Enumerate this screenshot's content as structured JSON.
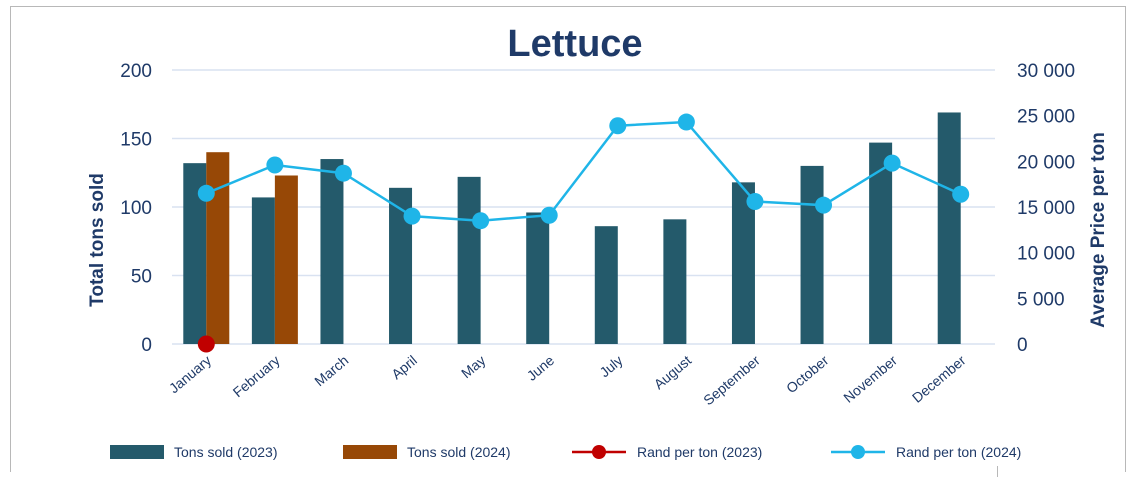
{
  "chart_data": {
    "type": "bar",
    "title": "Lettuce",
    "ylabel": "Total tons sold",
    "y2label": "Average Price per ton",
    "ylim": [
      0,
      200
    ],
    "y2lim": [
      0,
      30000
    ],
    "yticks": [
      "0",
      "50",
      "100",
      "150",
      "200"
    ],
    "y2ticks": [
      "0",
      "5 000",
      "10 000",
      "15 000",
      "20 000",
      "25 000",
      "30 000"
    ],
    "grid": true,
    "legend_position": "bottom",
    "categories": [
      "January",
      "February",
      "March",
      "April",
      "May",
      "June",
      "July",
      "August",
      "September",
      "October",
      "November",
      "December"
    ],
    "series": [
      {
        "name": "Tons sold (2023)",
        "kind": "bar",
        "axis": "left",
        "color": "#245a6b",
        "values": [
          132,
          107,
          135,
          114,
          122,
          96,
          86,
          91,
          118,
          130,
          147,
          169
        ]
      },
      {
        "name": "Tons sold (2024)",
        "kind": "bar",
        "axis": "left",
        "color": "#974806",
        "values": [
          140,
          123,
          null,
          null,
          null,
          null,
          null,
          null,
          null,
          null,
          null,
          null
        ]
      },
      {
        "name": "Rand per ton (2023)",
        "kind": "line",
        "axis": "right",
        "color": "#c00000",
        "values": [
          0,
          null,
          null,
          null,
          null,
          null,
          null,
          null,
          null,
          null,
          null,
          null
        ]
      },
      {
        "name": "Rand per ton (2024)",
        "kind": "line",
        "axis": "right",
        "color": "#1fb5e8",
        "values": [
          16500,
          19600,
          18700,
          14000,
          13500,
          14100,
          23900,
          24300,
          15600,
          15200,
          19800,
          16400
        ]
      }
    ]
  }
}
